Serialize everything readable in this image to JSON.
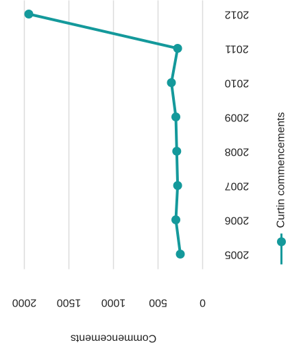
{
  "chart_data": {
    "type": "line",
    "y_label": "Commencements",
    "categories": [
      "2005",
      "2006",
      "2007",
      "2008",
      "2009",
      "2010",
      "2011",
      "2012"
    ],
    "series": [
      {
        "name": "Curtin commencements",
        "color": "#14999b",
        "values": [
          250,
          300,
          280,
          290,
          300,
          350,
          280,
          1950
        ]
      }
    ],
    "ylim": [
      0,
      2000
    ],
    "yticks": [
      0,
      500,
      1000,
      1500,
      2000
    ],
    "grid": true
  }
}
